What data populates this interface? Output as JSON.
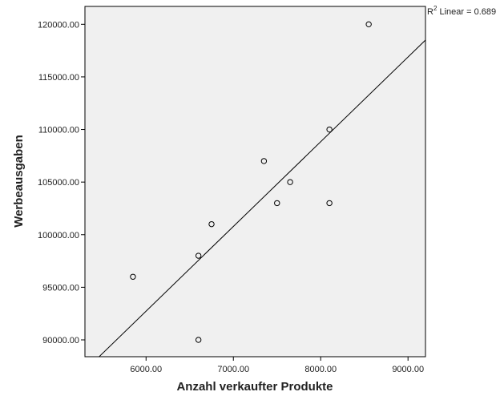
{
  "chart_data": {
    "type": "scatter",
    "title": "",
    "xlabel": "Anzahl verkaufter Produkte",
    "ylabel": "Werbeausgaben",
    "xlim": [
      5300,
      9200
    ],
    "ylim": [
      88400,
      121700
    ],
    "x_ticks": [
      6000,
      7000,
      8000,
      9000
    ],
    "x_tick_labels": [
      "6000.00",
      "7000.00",
      "8000.00",
      "9000.00"
    ],
    "y_ticks": [
      90000,
      95000,
      100000,
      105000,
      110000,
      115000,
      120000
    ],
    "y_tick_labels": [
      "90000.00",
      "95000.00",
      "100000.00",
      "105000.00",
      "110000.00",
      "115000.00",
      "120000.00"
    ],
    "points": [
      {
        "x": 5850,
        "y": 96000
      },
      {
        "x": 6600,
        "y": 98000
      },
      {
        "x": 6600,
        "y": 90000
      },
      {
        "x": 6750,
        "y": 101000
      },
      {
        "x": 7350,
        "y": 107000
      },
      {
        "x": 7500,
        "y": 103000
      },
      {
        "x": 7650,
        "y": 105000
      },
      {
        "x": 8100,
        "y": 110000
      },
      {
        "x": 8100,
        "y": 103000
      },
      {
        "x": 8550,
        "y": 120000
      }
    ],
    "fit_line": {
      "x": [
        5450,
        9200
      ],
      "y": [
        88300,
        118500
      ]
    },
    "r2_label_prefix": "R",
    "r2_label_suffix": " Linear = 0.689",
    "grid": false,
    "colors": {
      "plot_background": "#f0f0f0",
      "marker": "#000000",
      "line": "#000000"
    }
  }
}
